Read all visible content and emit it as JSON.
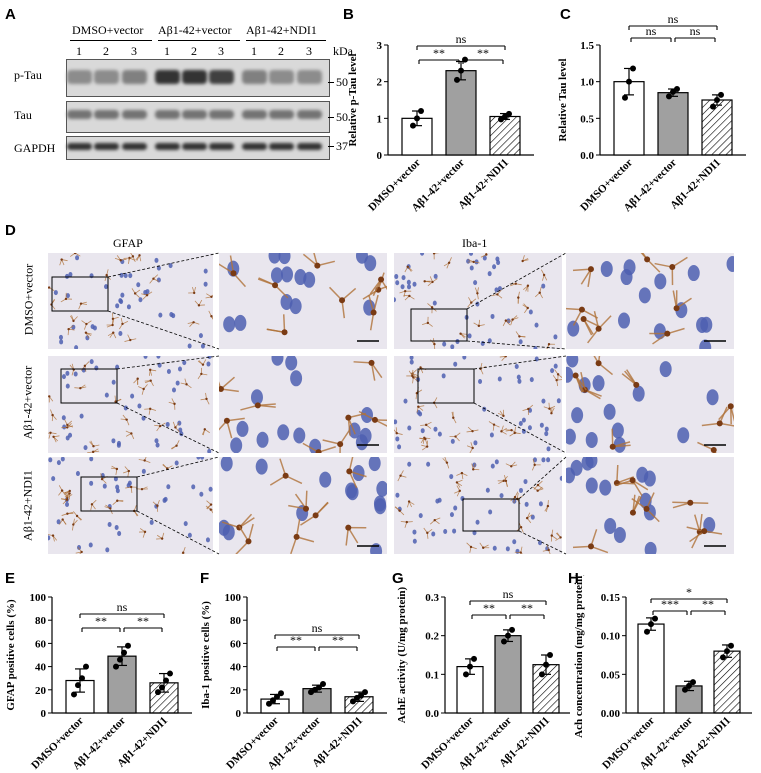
{
  "panels": {
    "A": "A",
    "B": "B",
    "C": "C",
    "D": "D",
    "E": "E",
    "F": "F",
    "G": "G",
    "H": "H"
  },
  "groups": [
    "DMSO+vector",
    "Aβ1-42+vector",
    "Aβ1-42+NDI1"
  ],
  "lanes": [
    "1",
    "2",
    "3"
  ],
  "kda": "kDa",
  "blot_rows": [
    {
      "name": "p-Tau",
      "mw": "50"
    },
    {
      "name": "Tau",
      "mw": "50"
    },
    {
      "name": "GAPDH",
      "mw": "37"
    }
  ],
  "micro": {
    "col1": "GFAP",
    "col2": "Iba-1",
    "rows": [
      "DMSO+vector",
      "Aβ1-42+vector",
      "Aβ1-42+NDI1"
    ]
  },
  "colors": {
    "bar1": "#ffffff",
    "bar2": "#a0a0a0",
    "bar3": "hatched"
  },
  "chart_data": [
    {
      "panel": "B",
      "type": "bar",
      "categories": [
        "DMSO+vector",
        "Aβ1-42+vector",
        "Aβ1-42+NDI1"
      ],
      "values": [
        1.0,
        2.3,
        1.05
      ],
      "errors": [
        0.2,
        0.25,
        0.08
      ],
      "points": [
        [
          0.8,
          1.0,
          1.2
        ],
        [
          2.05,
          2.3,
          2.6
        ],
        [
          0.97,
          1.05,
          1.12
        ]
      ],
      "ylabel": "Relative p-Tau level",
      "ylim": [
        0,
        3
      ],
      "yticks": [
        0,
        1,
        2,
        3
      ],
      "sig": [
        {
          "a": 0,
          "b": 1,
          "label": "**",
          "level": 0
        },
        {
          "a": 1,
          "b": 2,
          "label": "**",
          "level": 0
        },
        {
          "a": 0,
          "b": 2,
          "label": "ns",
          "level": 1
        }
      ]
    },
    {
      "panel": "C",
      "type": "bar",
      "categories": [
        "DMSO+vector",
        "Aβ1-42+vector",
        "Aβ1-42+NDI1"
      ],
      "values": [
        1.0,
        0.85,
        0.75
      ],
      "errors": [
        0.18,
        0.05,
        0.07
      ],
      "points": [
        [
          0.78,
          1.0,
          1.18
        ],
        [
          0.8,
          0.86,
          0.9
        ],
        [
          0.66,
          0.75,
          0.82
        ]
      ],
      "ylabel": "Relative Tau level",
      "ylim": [
        0,
        1.5
      ],
      "yticks": [
        0.0,
        0.5,
        1.0,
        1.5
      ],
      "sig": [
        {
          "a": 0,
          "b": 1,
          "label": "ns",
          "level": 0
        },
        {
          "a": 1,
          "b": 2,
          "label": "ns",
          "level": 0
        },
        {
          "a": 0,
          "b": 2,
          "label": "ns",
          "level": 1
        }
      ]
    },
    {
      "panel": "E",
      "type": "bar",
      "categories": [
        "DMSO+vector",
        "Aβ1-42+vector",
        "Aβ1-42+NDI1"
      ],
      "values": [
        28,
        49,
        26
      ],
      "errors": [
        10,
        8,
        8
      ],
      "points": [
        [
          16,
          24,
          30,
          40
        ],
        [
          40,
          46,
          52,
          58
        ],
        [
          18,
          22,
          28,
          34
        ]
      ],
      "ylabel": "GFAP positive cells (%)",
      "ylim": [
        0,
        100
      ],
      "yticks": [
        0,
        20,
        40,
        60,
        80,
        100
      ],
      "sig": [
        {
          "a": 0,
          "b": 1,
          "label": "**",
          "level": 0
        },
        {
          "a": 1,
          "b": 2,
          "label": "**",
          "level": 0
        },
        {
          "a": 0,
          "b": 2,
          "label": "ns",
          "level": 1
        }
      ]
    },
    {
      "panel": "F",
      "type": "bar",
      "categories": [
        "DMSO+vector",
        "Aβ1-42+vector",
        "Aβ1-42+NDI1"
      ],
      "values": [
        12,
        21,
        14
      ],
      "errors": [
        4,
        3,
        4
      ],
      "points": [
        [
          8,
          11,
          14,
          17
        ],
        [
          18,
          20,
          22,
          25
        ],
        [
          10,
          13,
          15,
          18
        ]
      ],
      "ylabel": "Iba-1 positive cells (%)",
      "ylim": [
        0,
        100
      ],
      "yticks": [
        0,
        20,
        40,
        60,
        80,
        100
      ],
      "sig": [
        {
          "a": 0,
          "b": 1,
          "label": "**",
          "level": 0
        },
        {
          "a": 1,
          "b": 2,
          "label": "**",
          "level": 0
        },
        {
          "a": 0,
          "b": 2,
          "label": "ns",
          "level": 1
        }
      ]
    },
    {
      "panel": "G",
      "type": "bar",
      "categories": [
        "DMSO+vector",
        "Aβ1-42+vector",
        "Aβ1-42+NDI1"
      ],
      "values": [
        0.12,
        0.2,
        0.125
      ],
      "errors": [
        0.02,
        0.015,
        0.025
      ],
      "points": [
        [
          0.1,
          0.12,
          0.14
        ],
        [
          0.185,
          0.2,
          0.215
        ],
        [
          0.1,
          0.125,
          0.15
        ]
      ],
      "ylabel": "AchE activity (U/mg protein)",
      "ylim": [
        0,
        0.3
      ],
      "yticks": [
        0.0,
        0.1,
        0.2,
        0.3
      ],
      "sig": [
        {
          "a": 0,
          "b": 1,
          "label": "**",
          "level": 0
        },
        {
          "a": 1,
          "b": 2,
          "label": "**",
          "level": 0
        },
        {
          "a": 0,
          "b": 2,
          "label": "ns",
          "level": 1
        }
      ]
    },
    {
      "panel": "H",
      "type": "bar",
      "categories": [
        "DMSO+vector",
        "Aβ1-42+vector",
        "Aβ1-42+NDI1"
      ],
      "values": [
        0.115,
        0.035,
        0.08
      ],
      "errors": [
        0.008,
        0.006,
        0.008
      ],
      "points": [
        [
          0.105,
          0.115,
          0.122
        ],
        [
          0.03,
          0.035,
          0.04
        ],
        [
          0.072,
          0.08,
          0.087
        ]
      ],
      "ylabel": "Ach concentration (mg/mg protein)",
      "ylim": [
        0,
        0.15
      ],
      "yticks": [
        0.0,
        0.05,
        0.1,
        0.15
      ],
      "sig": [
        {
          "a": 0,
          "b": 1,
          "label": "***",
          "level": 0
        },
        {
          "a": 1,
          "b": 2,
          "label": "**",
          "level": 0
        },
        {
          "a": 0,
          "b": 2,
          "label": "*",
          "level": 1
        }
      ]
    }
  ]
}
